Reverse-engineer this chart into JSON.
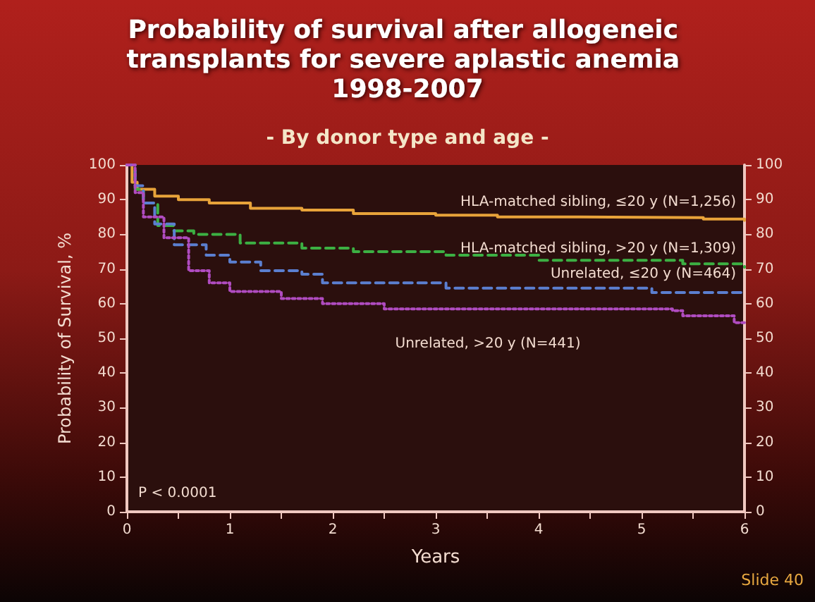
{
  "chart_data": {
    "type": "step",
    "title": "Probability of survival after allogeneic transplants for severe aplastic anemia 1998-2007",
    "subtitle": "- By donor type and age -",
    "xlabel": "Years",
    "ylabel": "Probability of Survival, %",
    "xlim": [
      0,
      6
    ],
    "xticks": [
      0,
      {
        "value": 0.5,
        "label": null
      },
      1,
      {
        "value": 1.5,
        "label": null
      },
      2,
      {
        "value": 2.5,
        "label": null
      },
      3,
      {
        "value": 3.5,
        "label": null
      },
      4,
      {
        "value": 4.5,
        "label": null
      },
      5,
      {
        "value": 5.5,
        "label": null
      },
      6
    ],
    "ylim": [
      0,
      100
    ],
    "yticks": [
      0,
      10,
      20,
      30,
      40,
      50,
      60,
      70,
      80,
      90,
      100
    ],
    "y2lim": [
      0,
      100
    ],
    "y2ticks": [
      0,
      10,
      20,
      30,
      40,
      50,
      60,
      70,
      80,
      90,
      100
    ],
    "grid": false,
    "legend": false,
    "marker": "none",
    "series": [
      {
        "name": "HLA-matched sibling, ≤20 y (N=1,256)",
        "color": "#e8a33a",
        "line_style": "solid",
        "x": [
          0,
          0.05,
          0.1,
          0.27,
          0.5,
          0.8,
          1.2,
          1.7,
          2.2,
          3.0,
          3.6,
          4.4,
          5.6,
          6
        ],
        "values": [
          100,
          95,
          93,
          91,
          90,
          89,
          87.5,
          87,
          86,
          85.5,
          85,
          84.8,
          84.4,
          84
        ]
      },
      {
        "name": "HLA-matched sibling, >20 y (N=1,309)",
        "color": "#3cb043",
        "line_style": "dashed",
        "x": [
          0,
          0.08,
          0.16,
          0.3,
          0.45,
          0.65,
          1.1,
          1.7,
          2.2,
          3.1,
          4.0,
          5.4,
          6
        ],
        "values": [
          100,
          93,
          89,
          82.5,
          81,
          80,
          77.5,
          76,
          75,
          74,
          72.5,
          71.5,
          70.5
        ]
      },
      {
        "name": "Unrelated, ≤20 y (N=464)",
        "color": "#5b7fd0",
        "line_style": "dashed",
        "x": [
          0,
          0.08,
          0.16,
          0.27,
          0.46,
          0.77,
          1.0,
          1.3,
          1.7,
          1.9,
          3.1,
          5.1,
          6
        ],
        "values": [
          100,
          94,
          89,
          83,
          77,
          74,
          72,
          69.5,
          68.5,
          66,
          64.5,
          63.2,
          63.2
        ]
      },
      {
        "name": "Unrelated, >20 y (N=441)",
        "color": "#b04cc0",
        "line_style": "dotted",
        "x": [
          0,
          0.08,
          0.16,
          0.36,
          0.6,
          0.8,
          1.0,
          1.5,
          1.9,
          2.5,
          5.3,
          5.4,
          5.9,
          6
        ],
        "values": [
          100,
          92,
          85,
          79,
          69.5,
          66,
          63.5,
          61.5,
          60,
          58.5,
          58,
          56.5,
          54.5,
          54.5
        ]
      }
    ],
    "annotations": [
      "P < 0.0001",
      "Slide 40"
    ]
  }
}
